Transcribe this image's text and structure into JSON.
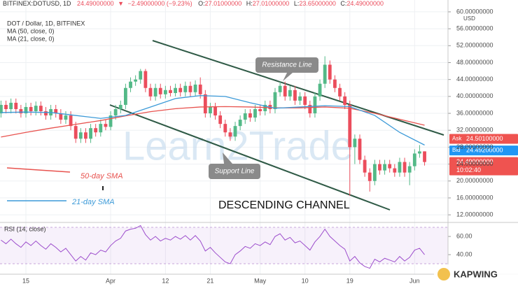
{
  "chart_data": {
    "type": "candlestick",
    "header": [
      "BITFINEX:DOTUSD, 1D",
      "24.49000000",
      "▼",
      "−2.49000000 (−9.23%)",
      "O:",
      "27.01000000",
      "H:",
      "27.01000000",
      "L:",
      "23.65000000",
      "C:",
      "24.49000000"
    ],
    "legend_texts": [
      "DOT / Dollar, 1D, BITFINEX",
      "MA (50, close, 0)",
      "MA (21, close, 0)"
    ],
    "x": [
      0,
      1,
      2,
      3,
      4,
      5,
      6,
      7,
      8,
      9,
      10,
      11,
      12,
      13,
      14,
      15,
      16,
      17,
      18,
      19,
      20,
      21,
      22,
      23,
      24,
      25,
      26,
      27,
      28,
      29,
      30,
      31,
      32,
      33,
      34,
      35,
      36,
      37,
      38,
      39,
      40,
      41,
      42,
      43,
      44,
      45,
      46,
      47,
      48,
      49,
      50,
      51,
      52,
      53,
      54,
      55,
      56,
      57,
      58,
      59,
      60,
      61,
      62,
      63,
      64,
      65,
      66,
      67,
      68,
      69,
      70,
      71,
      72,
      73,
      74,
      75,
      76,
      77,
      78,
      79,
      80,
      81,
      82,
      83,
      84,
      85
    ],
    "open": [
      36,
      38,
      37,
      38.5,
      37,
      36,
      37.5,
      36.5,
      37.8,
      36.5,
      35.5,
      37,
      36,
      34.5,
      35.5,
      33,
      30,
      31.5,
      30,
      32.5,
      31.5,
      33.5,
      32.8,
      35.5,
      37,
      38,
      42,
      43.5,
      44,
      46,
      42,
      40,
      42,
      40.5,
      41.5,
      40.8,
      42,
      41,
      42.5,
      41,
      42.8,
      40.5,
      36,
      37.5,
      35.5,
      33.5,
      31.5,
      30.5,
      33,
      34.5,
      36,
      35,
      37,
      36.5,
      38,
      37,
      41,
      42.5,
      40,
      41.5,
      39,
      40,
      38,
      36,
      40,
      43,
      47.5,
      44,
      42,
      40,
      38,
      28,
      30,
      25,
      22,
      20,
      24,
      22.5,
      24,
      23,
      22,
      24.5,
      22,
      23.5,
      26.5,
      27.01
    ],
    "high": [
      39,
      39,
      39.5,
      39.5,
      38,
      38.5,
      38.5,
      38.8,
      38.8,
      37.5,
      38,
      38,
      37,
      36.5,
      36.5,
      34,
      32.5,
      32.5,
      33.5,
      33.5,
      34.5,
      34.5,
      36.5,
      38,
      39,
      43,
      44.5,
      45,
      46.5,
      46.5,
      43,
      43,
      43,
      42.5,
      42.5,
      43,
      43,
      43.5,
      43.5,
      43.8,
      44.5,
      41.5,
      38.5,
      38.5,
      36.5,
      34.5,
      32.5,
      34,
      35.5,
      37,
      37,
      38,
      38,
      39,
      39,
      42,
      43.5,
      43.5,
      42.5,
      42.5,
      41,
      41,
      39,
      41,
      44,
      49.5,
      48.5,
      45,
      43,
      41,
      39,
      31,
      31,
      26,
      23,
      25,
      25,
      25,
      25,
      24,
      25.5,
      25.5,
      24.5,
      27.5,
      28.5,
      27.01
    ],
    "low": [
      35,
      36,
      36,
      36,
      35,
      35,
      35.5,
      35.5,
      35.5,
      34.5,
      34.5,
      35,
      33.5,
      33.5,
      32,
      29,
      29,
      29,
      29,
      30.5,
      30.5,
      32,
      32,
      34.5,
      36,
      37,
      41,
      42.5,
      43,
      41,
      39,
      39,
      39.5,
      39.5,
      40,
      40,
      40,
      40,
      40,
      40,
      39.5,
      35,
      35,
      34.5,
      32.5,
      30.5,
      29.5,
      29.5,
      32,
      33.5,
      34,
      34,
      35.5,
      35.5,
      36,
      36,
      40,
      39,
      39,
      38,
      38,
      37,
      35,
      35,
      39,
      42,
      43,
      41,
      39,
      37,
      16.5,
      24,
      24,
      21,
      17.5,
      19,
      21.5,
      21.5,
      22,
      21,
      21,
      21,
      19,
      22.5,
      25.5,
      23.65
    ],
    "close": [
      38,
      37,
      38.5,
      37,
      36,
      37.5,
      36.5,
      37.8,
      36.5,
      35.5,
      37,
      36,
      34.5,
      35.5,
      33,
      30,
      31.5,
      30,
      32.5,
      31.5,
      33.5,
      32.8,
      35.5,
      37,
      38,
      42,
      43.5,
      44,
      46,
      42,
      40,
      42,
      40.5,
      41.5,
      40.8,
      42,
      41,
      42.5,
      41,
      42.8,
      40.5,
      36,
      37.5,
      35.5,
      33.5,
      31.5,
      30.5,
      33,
      34.5,
      36,
      35,
      37,
      36.5,
      38,
      37,
      41,
      42.5,
      40,
      41.5,
      39,
      40,
      38,
      36,
      40,
      43,
      47.5,
      44,
      42,
      40,
      38,
      28,
      30,
      25,
      22,
      20,
      24,
      22.5,
      24,
      23,
      22,
      24.5,
      22,
      23.5,
      26.5,
      27,
      24.49
    ],
    "up_color": "#53b987",
    "down_color": "#eb4d5c",
    "series": [
      {
        "name": "50-day SMA",
        "color": "#e8534f",
        "x": [
          0,
          5,
          10,
          15,
          20,
          25,
          30,
          35,
          40,
          45,
          50,
          55,
          60,
          65,
          70,
          75,
          80,
          85
        ],
        "values": [
          30.4,
          31.5,
          32.5,
          33.4,
          34.3,
          35.4,
          36.4,
          37.1,
          37.5,
          37.6,
          37.5,
          37.3,
          37.3,
          37.5,
          37.2,
          36,
          34.6,
          33.2
        ]
      },
      {
        "name": "21-day SMA",
        "color": "#3c9ad8",
        "x": [
          0,
          5,
          10,
          15,
          20,
          25,
          30,
          35,
          40,
          45,
          50,
          55,
          60,
          65,
          70,
          75,
          80,
          85
        ],
        "values": [
          36.2,
          36.3,
          36.2,
          35.5,
          34.8,
          35.5,
          37.5,
          39.5,
          40.2,
          40,
          38.5,
          37.2,
          37.5,
          37.8,
          37.6,
          35.5,
          31.5,
          28.5
        ]
      }
    ],
    "xlim": [
      -0.2,
      89.7
    ],
    "xticks": [
      {
        "value": 5,
        "label": "15"
      },
      {
        "value": 22,
        "label": "Apr"
      },
      {
        "value": 33,
        "label": "12"
      },
      {
        "value": 42,
        "label": "21"
      },
      {
        "value": 52,
        "label": "May"
      },
      {
        "value": 61,
        "label": "10"
      },
      {
        "value": 70,
        "label": "19"
      },
      {
        "value": 83,
        "label": "Jun"
      }
    ],
    "ylim": [
      10.2,
      62.8
    ],
    "yticks": [
      {
        "value": 12,
        "label": "12.00000000"
      },
      {
        "value": 16,
        "label": "16.00000000"
      },
      {
        "value": 20,
        "label": "20.00000000"
      },
      {
        "value": 24,
        "label": "24.00000000"
      },
      {
        "value": 28,
        "label": "28.00000000"
      },
      {
        "value": 32,
        "label": "32.00000000"
      },
      {
        "value": 36,
        "label": "36.00000000"
      },
      {
        "value": 40,
        "label": "40.00000000"
      },
      {
        "value": 44,
        "label": "44.00000000"
      },
      {
        "value": 48,
        "label": "48.00000000"
      },
      {
        "value": 52,
        "label": "52.00000000"
      },
      {
        "value": 56,
        "label": "56.00000000"
      },
      {
        "value": 60,
        "label": "60.00000000"
      }
    ],
    "y_unit": "USD",
    "grid": true,
    "price_tags": [
      {
        "name": "Ask",
        "value": 24.501,
        "label": "24.50100000",
        "color": "#ef5350"
      },
      {
        "name": "Bid",
        "value": 24.492,
        "label": "24.49200000",
        "color": "#2196f3"
      },
      {
        "value": 24.49,
        "label": "24.49000000",
        "time": "10:02:40",
        "color": "#ef5350"
      }
    ],
    "annotations": [
      "Resistance Line",
      "Support Line",
      "DESCENDING CHANNEL"
    ],
    "watermark": "Learn2Trade",
    "brand": "KAPWING",
    "rsi": {
      "title": "RSI (14, close)",
      "color": "#9c4dcc",
      "values": [
        56,
        52,
        57,
        52,
        48,
        54,
        50,
        55,
        50,
        46,
        52,
        48,
        43,
        47,
        40,
        33,
        38,
        34,
        42,
        40,
        45,
        43,
        50,
        55,
        58,
        66,
        68,
        69,
        72,
        62,
        56,
        60,
        55,
        58,
        56,
        60,
        57,
        61,
        56,
        61,
        55,
        44,
        48,
        42,
        37,
        32,
        30,
        40,
        44,
        49,
        47,
        52,
        50,
        54,
        51,
        60,
        63,
        56,
        59,
        53,
        55,
        50,
        45,
        54,
        60,
        68,
        60,
        55,
        50,
        46,
        33,
        38,
        31,
        27,
        25,
        35,
        32,
        36,
        34,
        32,
        38,
        33,
        37,
        45,
        47,
        40
      ],
      "ylim": [
        18.5,
        75.4
      ],
      "yticks": [
        {
          "value": 40,
          "label": "40.00"
        },
        {
          "value": 60,
          "label": "60.00"
        }
      ],
      "band": [
        30,
        70
      ]
    }
  }
}
